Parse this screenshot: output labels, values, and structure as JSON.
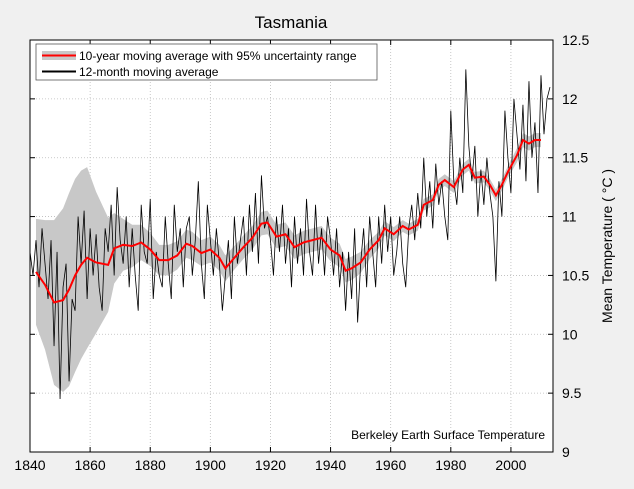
{
  "chart_data": {
    "type": "line",
    "title": "Tasmania",
    "ylabel": "Mean Temperature ( °C )",
    "xlabel": "",
    "annotation": "Berkeley Earth Surface Temperature",
    "xlim": [
      1840,
      2014
    ],
    "ylim": [
      9,
      12.5
    ],
    "xticks": [
      1840,
      1860,
      1880,
      1900,
      1920,
      1940,
      1960,
      1980,
      2000
    ],
    "yticks": [
      9,
      9.5,
      10,
      10.5,
      11,
      11.5,
      12,
      12.5
    ],
    "ytick_labels": [
      "9",
      "9.5",
      "10",
      "10.5",
      "11",
      "11.5",
      "12",
      "12.5"
    ],
    "y_axis_side": "right",
    "grid": true,
    "legend_placement": "top-left",
    "colors": {
      "ten_year": "#ff0000",
      "band": "#c8c8c8",
      "twelve_month": "#000000"
    },
    "series": [
      {
        "name": "10-year moving average with 95% uncertainty range",
        "x": [
          1842,
          1845,
          1848,
          1851,
          1853,
          1855,
          1857,
          1859,
          1862,
          1866,
          1868,
          1871,
          1874,
          1877,
          1880,
          1883,
          1886,
          1889,
          1892,
          1894,
          1897,
          1900,
          1903,
          1905,
          1908,
          1911,
          1914,
          1917,
          1919,
          1922,
          1925,
          1928,
          1931,
          1934,
          1937,
          1940,
          1943,
          1945,
          1947,
          1950,
          1953,
          1956,
          1958,
          1961,
          1964,
          1966,
          1969,
          1971,
          1974,
          1976,
          1978,
          1981,
          1984,
          1986,
          1988,
          1991,
          1993,
          1995,
          1997,
          1999,
          2002,
          2004,
          2006,
          2008,
          2010
        ],
        "values": [
          10.53,
          10.42,
          10.27,
          10.29,
          10.38,
          10.5,
          10.59,
          10.65,
          10.61,
          10.59,
          10.73,
          10.76,
          10.75,
          10.78,
          10.72,
          10.63,
          10.63,
          10.67,
          10.77,
          10.75,
          10.69,
          10.72,
          10.65,
          10.56,
          10.65,
          10.74,
          10.82,
          10.94,
          10.95,
          10.83,
          10.85,
          10.74,
          10.78,
          10.8,
          10.82,
          10.72,
          10.67,
          10.54,
          10.56,
          10.61,
          10.72,
          10.8,
          10.9,
          10.85,
          10.92,
          10.89,
          10.93,
          11.1,
          11.14,
          11.27,
          11.31,
          11.25,
          11.4,
          11.44,
          11.33,
          11.34,
          11.27,
          11.18,
          11.27,
          11.38,
          11.52,
          11.65,
          11.62,
          11.65,
          11.65
        ],
        "uncertainty": [
          0.45,
          0.55,
          0.7,
          0.78,
          0.82,
          0.82,
          0.8,
          0.77,
          0.6,
          0.4,
          0.3,
          0.22,
          0.18,
          0.15,
          0.14,
          0.13,
          0.13,
          0.12,
          0.12,
          0.12,
          0.11,
          0.11,
          0.11,
          0.11,
          0.1,
          0.1,
          0.1,
          0.1,
          0.1,
          0.1,
          0.1,
          0.1,
          0.1,
          0.1,
          0.1,
          0.1,
          0.1,
          0.1,
          0.1,
          0.09,
          0.08,
          0.07,
          0.06,
          0.06,
          0.05,
          0.05,
          0.05,
          0.05,
          0.05,
          0.05,
          0.05,
          0.05,
          0.05,
          0.05,
          0.05,
          0.05,
          0.05,
          0.05,
          0.05,
          0.05,
          0.06,
          0.06,
          0.06,
          0.06,
          0.06
        ]
      },
      {
        "name": "12-month moving average",
        "x_start": 1840,
        "x_step": 1,
        "values": [
          10.7,
          10.5,
          10.8,
          10.4,
          10.9,
          10.6,
          10.3,
          10.8,
          9.9,
          10.7,
          9.45,
          10.4,
          10.6,
          9.6,
          10.3,
          10.2,
          11.0,
          10.6,
          11.05,
          10.3,
          10.9,
          10.5,
          10.85,
          10.4,
          10.2,
          10.9,
          10.7,
          11.1,
          10.5,
          11.25,
          10.8,
          10.6,
          11.0,
          10.4,
          10.9,
          10.5,
          10.2,
          11.1,
          10.7,
          10.6,
          11.15,
          10.3,
          10.7,
          10.5,
          10.4,
          11.0,
          10.6,
          10.3,
          11.1,
          10.7,
          10.9,
          10.4,
          10.9,
          11.0,
          10.5,
          10.8,
          11.3,
          10.6,
          10.3,
          11.1,
          10.8,
          10.5,
          10.9,
          10.6,
          10.2,
          10.5,
          10.8,
          10.3,
          11.0,
          10.6,
          10.8,
          11.0,
          10.5,
          11.1,
          10.7,
          11.2,
          10.6,
          11.35,
          10.9,
          11.0,
          10.8,
          10.5,
          11.0,
          10.7,
          11.1,
          10.6,
          10.9,
          10.4,
          11.0,
          10.6,
          10.9,
          10.5,
          11.15,
          10.7,
          10.5,
          11.1,
          10.6,
          10.9,
          10.5,
          11.0,
          10.8,
          10.5,
          10.9,
          10.4,
          10.7,
          10.2,
          10.7,
          10.3,
          10.9,
          10.1,
          10.6,
          10.9,
          10.4,
          11.0,
          10.7,
          10.4,
          11.0,
          10.6,
          11.1,
          10.7,
          11.0,
          10.5,
          10.7,
          11.0,
          10.6,
          10.4,
          10.9,
          11.1,
          10.8,
          11.2,
          10.9,
          11.5,
          11.0,
          11.3,
          10.9,
          11.45,
          11.1,
          11.3,
          11.0,
          10.8,
          11.9,
          11.3,
          11.1,
          11.5,
          11.2,
          12.25,
          11.6,
          11.3,
          11.6,
          11.0,
          11.4,
          11.1,
          11.5,
          11.2,
          11.0,
          10.45,
          11.3,
          11.0,
          11.9,
          11.5,
          11.2,
          12.0,
          11.7,
          11.4,
          11.95,
          11.3,
          12.15,
          11.5,
          11.8,
          11.2,
          12.2,
          11.7,
          12.0,
          12.1
        ]
      }
    ]
  }
}
